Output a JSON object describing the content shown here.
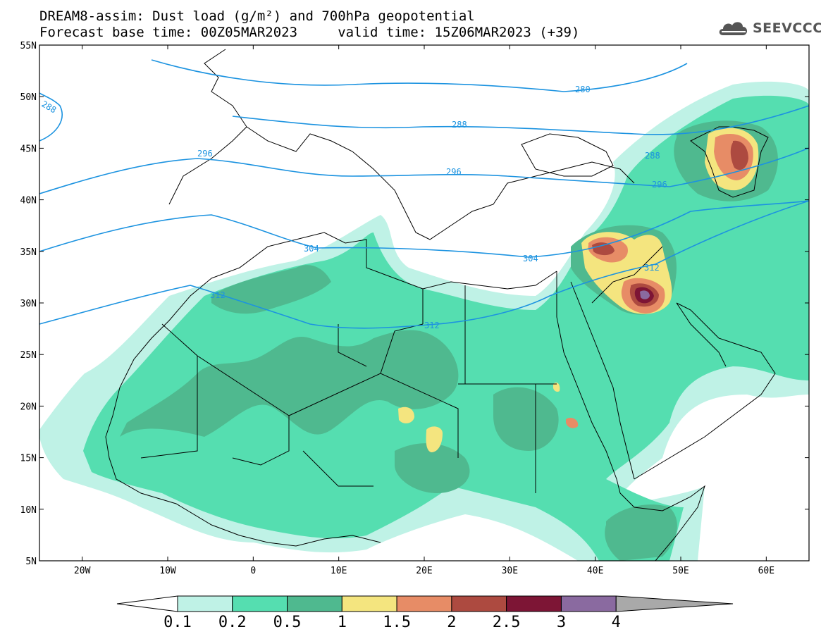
{
  "title": {
    "line1": "DREAM8-assim: Dust load (g/m²) and 700hPa geopotential",
    "line2": "Forecast base time: 00Z05MAR2023     valid time: 15Z06MAR2023 (+39)"
  },
  "logo": {
    "icon": "cloud-icon",
    "text": "SEEVCCC"
  },
  "map": {
    "lon_range": [
      -25,
      65
    ],
    "lat_range": [
      5,
      55
    ],
    "lat_ticks": [
      "55N",
      "50N",
      "45N",
      "40N",
      "35N",
      "30N",
      "25N",
      "20N",
      "15N",
      "10N",
      "5N"
    ],
    "lon_ticks": [
      "20W",
      "10W",
      "0",
      "10E",
      "20E",
      "30E",
      "40E",
      "50E",
      "60E"
    ],
    "geopotential_labels": [
      "280",
      "288",
      "288",
      "288",
      "296",
      "296",
      "296",
      "304",
      "304",
      "312",
      "312",
      "312"
    ],
    "colors": {
      "contour": "#1c93e0",
      "border": "#000000"
    }
  },
  "colorbar": {
    "labels": [
      "0.1",
      "0.2",
      "0.5",
      "1",
      "1.5",
      "2",
      "2.5",
      "3",
      "4"
    ],
    "colors": [
      "#bff2e6",
      "#55deb0",
      "#4fb98f",
      "#f4e57f",
      "#e78c66",
      "#ad4a40",
      "#7d1535",
      "#8a6aa0",
      "#a9a9a9"
    ]
  }
}
